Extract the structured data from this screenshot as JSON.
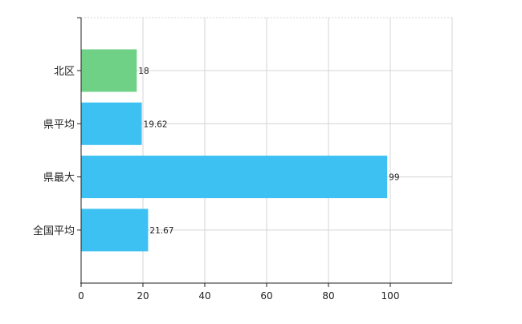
{
  "chart_data": {
    "type": "bar",
    "orientation": "horizontal",
    "categories": [
      "北区",
      "県平均",
      "県最大",
      "全国平均"
    ],
    "values": [
      18,
      19.62,
      99,
      21.67
    ],
    "value_labels": [
      "18",
      "19.62",
      "99",
      "21.67"
    ],
    "bar_colors": [
      "#6fd186",
      "#3dc1f2",
      "#3dc1f2",
      "#3dc1f2"
    ],
    "xlim": [
      0,
      120
    ],
    "xticks": [
      0,
      20,
      40,
      60,
      80,
      100
    ],
    "xtick_labels": [
      "0",
      "20",
      "40",
      "60",
      "80",
      "100"
    ],
    "grid": true,
    "grid_style": "dotted",
    "grid_color": "#d4d4d4",
    "axis_color": "#222222",
    "title": "",
    "xlabel": "",
    "ylabel": ""
  }
}
